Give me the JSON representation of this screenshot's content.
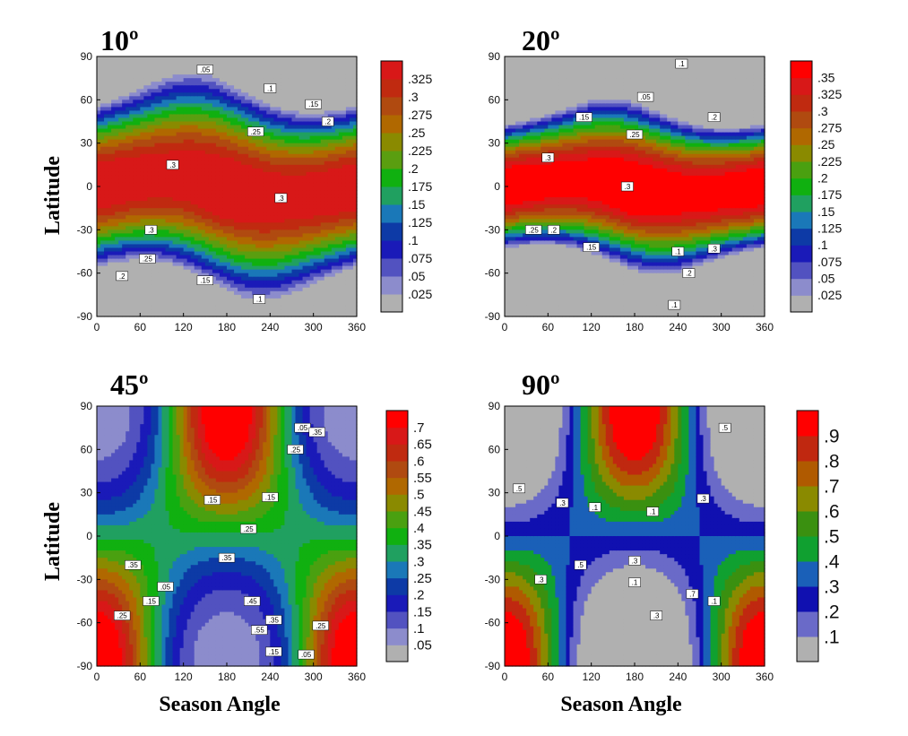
{
  "figure": {
    "xlabel": "Season Angle",
    "ylabel": "Latitude"
  },
  "chart_data": [
    {
      "type": "heatmap",
      "title": "10º",
      "xlabel": "Season Angle",
      "ylabel": "Latitude",
      "xlim": [
        0,
        360
      ],
      "ylim": [
        -90,
        90
      ],
      "x_ticks": [
        "0",
        "60",
        "120",
        "180",
        "240",
        "300",
        "360"
      ],
      "y_ticks": [
        "90",
        "60",
        "30",
        "0",
        "-30",
        "-60",
        "-90"
      ],
      "colorbar": {
        "levels": [
          0.025,
          0.05,
          0.075,
          0.1,
          0.125,
          0.15,
          0.175,
          0.2,
          0.225,
          0.25,
          0.275,
          0.3,
          0.325
        ],
        "labels": [
          ".025",
          ".05",
          ".075",
          ".1",
          ".125",
          ".15",
          ".175",
          ".2",
          ".225",
          ".25",
          ".275",
          ".3",
          ".325"
        ],
        "colors": [
          "#b0b0b0",
          "#8c8ccc",
          "#5252c0",
          "#1a1ab8",
          "#0d3aa6",
          "#1a78b8",
          "#20a060",
          "#10b010",
          "#5a9e10",
          "#8a8a00",
          "#b06800",
          "#b04a10",
          "#c02a10",
          "#d81818",
          "#ff0000"
        ]
      },
      "field": {
        "kind": "equatorial-max",
        "A": 0.3,
        "k": 0.22,
        "peak": 0.315
      },
      "contour_labels": [
        ".05",
        ".1",
        ".15",
        ".2",
        ".25",
        ".3",
        ".3",
        ".3",
        ".25",
        ".2",
        ".15",
        ".1"
      ]
    },
    {
      "type": "heatmap",
      "title": "20º",
      "xlabel": "Season Angle",
      "ylabel": "Latitude",
      "xlim": [
        0,
        360
      ],
      "ylim": [
        -90,
        90
      ],
      "x_ticks": [
        "0",
        "60",
        "120",
        "180",
        "240",
        "300",
        "360"
      ],
      "y_ticks": [
        "90",
        "60",
        "30",
        "0",
        "-30",
        "-60",
        "-90"
      ],
      "colorbar": {
        "levels": [
          0.025,
          0.05,
          0.075,
          0.1,
          0.125,
          0.15,
          0.175,
          0.2,
          0.225,
          0.25,
          0.275,
          0.3,
          0.325,
          0.35
        ],
        "labels": [
          ".025",
          ".05",
          ".075",
          ".1",
          ".125",
          ".15",
          ".175",
          ".2",
          ".225",
          ".25",
          ".275",
          ".3",
          ".325",
          ".35"
        ],
        "colors": [
          "#b0b0b0",
          "#8c8ccc",
          "#5252c0",
          "#1a1ab8",
          "#0d3aa6",
          "#1a78b8",
          "#20a060",
          "#10b010",
          "#4aa010",
          "#8a8a00",
          "#b06800",
          "#b04a10",
          "#c02a10",
          "#d81818",
          "#ff0000"
        ]
      },
      "field": {
        "kind": "equatorial-max",
        "A": 0.33,
        "k": 0.45,
        "peak": 0.33
      },
      "contour_labels": [
        ".1",
        ".05",
        ".15",
        ".2",
        ".25",
        ".3",
        ".3",
        ".25",
        ".2",
        ".15",
        ".1",
        ".3",
        ".2",
        ".1"
      ]
    },
    {
      "type": "heatmap",
      "title": "45º",
      "xlabel": "Season Angle",
      "ylabel": "Latitude",
      "xlim": [
        0,
        360
      ],
      "ylim": [
        -90,
        90
      ],
      "x_ticks": [
        "0",
        "60",
        "120",
        "180",
        "240",
        "300",
        "360"
      ],
      "y_ticks": [
        "90",
        "60",
        "30",
        "0",
        "-30",
        "-60",
        "-90"
      ],
      "colorbar": {
        "levels": [
          0.05,
          0.1,
          0.15,
          0.2,
          0.25,
          0.3,
          0.35,
          0.4,
          0.45,
          0.5,
          0.55,
          0.6,
          0.65,
          0.7
        ],
        "labels": [
          ".05",
          ".1",
          ".15",
          ".2",
          ".25",
          ".3",
          ".35",
          ".4",
          ".45",
          ".5",
          ".55",
          ".6",
          ".65",
          ".7"
        ],
        "colors": [
          "#b0b0b0",
          "#8c8ccc",
          "#5252c0",
          "#1a1ab8",
          "#0d3aa6",
          "#1a78b8",
          "#20a060",
          "#10b010",
          "#4aa010",
          "#8a8a00",
          "#b06800",
          "#b04a10",
          "#c02a10",
          "#d81818",
          "#ff0000"
        ]
      },
      "field": {
        "kind": "polar-day",
        "c": 0.34,
        "amp": 0.42,
        "k": 0.9
      },
      "contour_labels": [
        ".05",
        ".35",
        ".25",
        ".15",
        ".25",
        ".15",
        ".05",
        ".35",
        ".15",
        ".25",
        ".35",
        ".45",
        ".55",
        ".35",
        ".25",
        ".15",
        ".05"
      ]
    },
    {
      "type": "heatmap",
      "title": "90º",
      "xlabel": "Season Angle",
      "ylabel": "Latitude",
      "xlim": [
        0,
        360
      ],
      "ylim": [
        -90,
        90
      ],
      "x_ticks": [
        "0",
        "60",
        "120",
        "180",
        "240",
        "300",
        "360"
      ],
      "y_ticks": [
        "90",
        "60",
        "30",
        "0",
        "-30",
        "-60",
        "-90"
      ],
      "colorbar": {
        "levels": [
          0.1,
          0.2,
          0.3,
          0.4,
          0.5,
          0.6,
          0.7,
          0.8,
          0.9
        ],
        "labels": [
          ".1",
          ".2",
          ".3",
          ".4",
          ".5",
          ".6",
          ".7",
          ".8",
          ".9"
        ],
        "colors": [
          "#b0b0b0",
          "#6a6ac8",
          "#1010b0",
          "#1a60b8",
          "#10a030",
          "#3a9010",
          "#8a8a00",
          "#b05a00",
          "#c02810",
          "#ff0000"
        ]
      },
      "field": {
        "kind": "polar-day",
        "c": 0.3,
        "amp": 0.7,
        "k": 1.0
      },
      "contour_labels": [
        ".5",
        ".3",
        ".1",
        ".1",
        ".3",
        ".5",
        ".3",
        ".1",
        ".3",
        ".5",
        ".7",
        ".3",
        ".1"
      ]
    }
  ]
}
